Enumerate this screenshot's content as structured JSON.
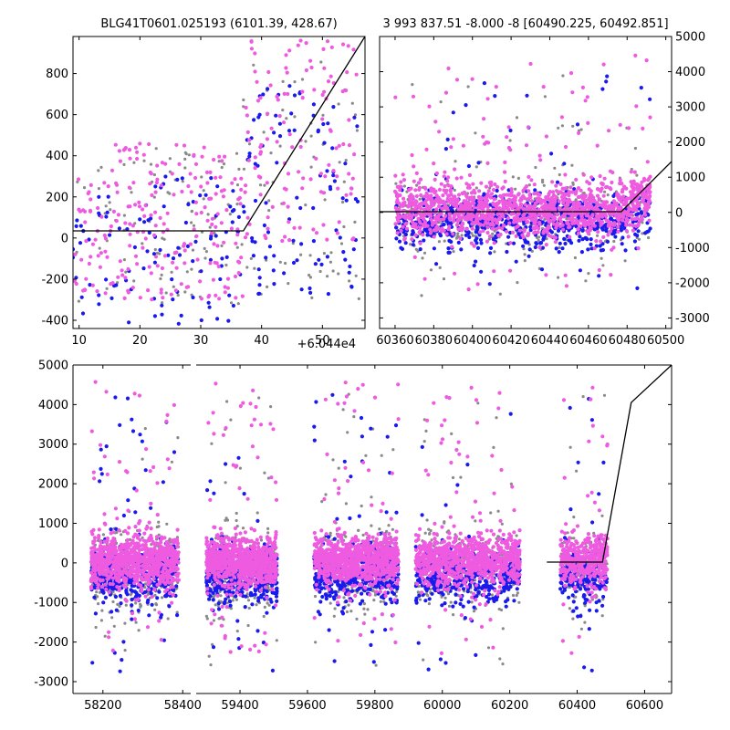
{
  "colors": {
    "magenta": "#ee5ae0",
    "blue": "#1a1aee",
    "gray": "#8a8a8a",
    "model": "#000000"
  },
  "chart_data": [
    {
      "id": "zoom",
      "type": "scatter",
      "title": "BLG41T0601.025193 (6101.39, 428.67)",
      "x_offset_label": "+6.044e4",
      "xlim": [
        9,
        57
      ],
      "ylim": [
        -440,
        980
      ],
      "x_ticks": [
        10,
        20,
        30,
        40,
        50
      ],
      "y_ticks": [
        -400,
        -200,
        0,
        200,
        400,
        600,
        800
      ],
      "model_line": {
        "x": [
          9,
          37,
          57
        ],
        "y": [
          35,
          35,
          980
        ]
      },
      "series": [
        {
          "color": "gray",
          "n": 170,
          "x_range": [
            9,
            56
          ],
          "regimes": [
            {
              "x_max": 37,
              "y_center": 60,
              "y_spread": 380
            },
            {
              "x_max": 57,
              "y_center": 320,
              "y_spread": 620
            }
          ]
        },
        {
          "color": "blue",
          "n": 200,
          "x_range": [
            9,
            56
          ],
          "regimes": [
            {
              "x_max": 37,
              "y_center": -60,
              "y_spread": 360
            },
            {
              "x_max": 57,
              "y_center": 230,
              "y_spread": 520
            }
          ]
        },
        {
          "color": "magenta",
          "n": 360,
          "x_range": [
            9,
            56
          ],
          "regimes": [
            {
              "x_max": 37,
              "y_center": 80,
              "y_spread": 380
            },
            {
              "x_max": 57,
              "y_center": 500,
              "y_spread": 520
            }
          ]
        }
      ]
    },
    {
      "id": "season",
      "type": "scatter",
      "title": "3 993 837.51 -8.000 -8 [60490.225, 60492.851]",
      "xlim": [
        60352,
        60503
      ],
      "ylim": [
        -3300,
        5000
      ],
      "x_ticks": [
        60360,
        60380,
        60400,
        60420,
        60440,
        60460,
        60480,
        60500
      ],
      "y_ticks": [
        -3000,
        -2000,
        -1000,
        0,
        1000,
        2000,
        3000,
        4000,
        5000
      ],
      "y_axis_side": "right",
      "model_line": {
        "x": [
          60352,
          60477,
          60503
        ],
        "y": [
          20,
          20,
          1450
        ]
      },
      "series": [
        {
          "color": "gray",
          "n": 450,
          "x_range": [
            60360,
            60492
          ],
          "y_center": -150,
          "y_spread": 900
        },
        {
          "color": "blue",
          "n": 700,
          "x_range": [
            60360,
            60492
          ],
          "y_center": -250,
          "y_spread": 700
        },
        {
          "color": "magenta",
          "n": 1300,
          "x_range": [
            60360,
            60492
          ],
          "y_center": 80,
          "y_spread": 650
        }
      ]
    },
    {
      "id": "full",
      "type": "scatter",
      "title": "",
      "x_break": {
        "left_end": 58420,
        "right_start": 59270
      },
      "xlim": [
        58125,
        60680
      ],
      "ylim": [
        -3300,
        5000
      ],
      "x_ticks": [
        58200,
        58400,
        59400,
        59600,
        59800,
        60000,
        60200,
        60400,
        60600
      ],
      "y_ticks": [
        -3000,
        -2000,
        -1000,
        0,
        1000,
        2000,
        3000,
        4000,
        5000
      ],
      "model_line": {
        "x": [
          60310,
          60475,
          60560,
          60680
        ],
        "y": [
          20,
          20,
          4050,
          5000
        ]
      },
      "seasons": [
        [
          58170,
          58390
        ],
        [
          59300,
          59510
        ],
        [
          59620,
          59870
        ],
        [
          59920,
          60230
        ],
        [
          60350,
          60490
        ]
      ],
      "series": [
        {
          "color": "gray",
          "n": 1500,
          "y_center": -200,
          "y_spread": 1000
        },
        {
          "color": "blue",
          "n": 2200,
          "y_center": -300,
          "y_spread": 700
        },
        {
          "color": "magenta",
          "n": 4500,
          "y_center": 50,
          "y_spread": 600
        }
      ]
    }
  ]
}
